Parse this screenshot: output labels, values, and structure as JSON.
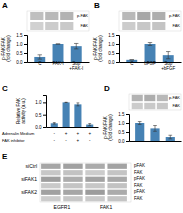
{
  "chart_data": [
    {
      "type": "heatmap",
      "title": "A",
      "cells": [
        [
          0.75,
          0.72,
          0.7
        ],
        [
          0.82,
          0.8,
          0.79
        ]
      ],
      "row_labels": [
        "p-FAK",
        "FAK"
      ]
    },
    {
      "type": "bar",
      "categories": [
        "C",
        "FAK-I",
        "Sup\n+FAK-I"
      ],
      "values": [
        0.28,
        1.0,
        0.88
      ],
      "errors": [
        0.12,
        0.0,
        0.15
      ],
      "ylabel": "p-FAK/FAK\n(fold change)",
      "ylim": [
        0,
        1.5
      ],
      "yticks": [
        {
          "value": 0,
          "label": "0.0"
        },
        0.5,
        {
          "value": 1.0,
          "label": "1.0"
        },
        1.5
      ]
    },
    {
      "type": "heatmap",
      "title": "B",
      "cells": [
        [
          0.72,
          0.65,
          0.68
        ],
        [
          0.8,
          0.78,
          0.77
        ]
      ],
      "row_labels": [
        "p-FAK",
        "FAK"
      ]
    },
    {
      "type": "bar",
      "categories": [
        "C",
        "bFGF",
        "Sup\n+bFGF"
      ],
      "values": [
        0.12,
        1.0,
        0.38
      ],
      "errors": [
        0.0,
        0.08,
        0.2
      ],
      "ylabel": "p-FAK/FAK\n(fold change)",
      "ylim": [
        0,
        1.5
      ],
      "yticks": [
        {
          "value": 0,
          "label": "0.0"
        },
        0.5,
        {
          "value": 1.0,
          "label": "1.0"
        },
        1.5
      ]
    },
    {
      "type": "bar",
      "title": "C",
      "categories": [
        null,
        null,
        null,
        null
      ],
      "values": [
        0.15,
        1.0,
        0.92,
        0.1
      ],
      "errors": [
        0.03,
        0.0,
        0.06,
        0.04
      ],
      "ylabel": "Relative FAK\nactivity (a.u.)",
      "ylim": [
        0,
        1.3
      ],
      "yticks": [
        {
          "value": 0,
          "label": "0.0"
        },
        0.5,
        {
          "value": 1.0,
          "label": "1.0"
        }
      ],
      "annotation_rows": [
        {
          "label": "Adrenalin Medium",
          "values": [
            "-",
            "+",
            "+",
            "+"
          ]
        },
        {
          "label": "FAK inhibitor",
          "values": [
            "-",
            "-",
            "+",
            "-"
          ]
        }
      ]
    },
    {
      "type": "heatmap",
      "title": "D",
      "cells": [
        [
          0.7,
          0.68,
          0.72
        ],
        [
          0.8,
          0.79,
          0.78
        ]
      ],
      "row_labels": [
        "p-FAK",
        "FAK"
      ]
    },
    {
      "type": "bar",
      "categories": [
        null,
        null,
        null
      ],
      "values": [
        1.0,
        0.7,
        0.22
      ],
      "errors": [
        0.08,
        0.16,
        0.1
      ],
      "ylabel": "p-FAK/FAK\n(fold change)",
      "ylim": [
        0,
        1.5
      ],
      "yticks": [
        {
          "value": 0,
          "label": "0.0"
        },
        0.5,
        {
          "value": 1.0,
          "label": "1.0"
        },
        1.5
      ]
    },
    {
      "type": "heatmap",
      "title": "E",
      "cells": [
        [
          0.65,
          0.63,
          0.67,
          0.64
        ],
        [
          0.78,
          0.76,
          0.8,
          0.77
        ],
        [
          0.62,
          0.68,
          0.64,
          0.66
        ],
        [
          0.79,
          0.77,
          0.78,
          0.76
        ],
        [
          0.63,
          0.65,
          0.61,
          0.67
        ],
        [
          0.8,
          0.78,
          0.79,
          0.77
        ]
      ],
      "row_labels": [
        "pFAK",
        "FAK",
        "pFAK",
        "FAK",
        "pFAK",
        "FAK"
      ],
      "left_labels": [
        "siCtrl",
        null,
        "siFAK1",
        null,
        "siFAK2",
        null
      ],
      "bottom_labels": [
        "EGFR1",
        "FAK1"
      ]
    }
  ]
}
